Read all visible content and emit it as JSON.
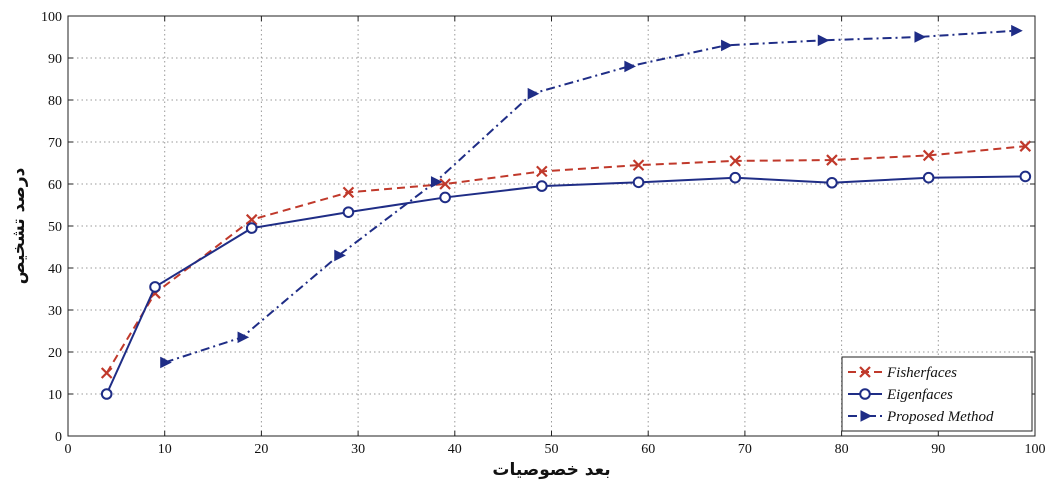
{
  "chart_data": {
    "type": "line",
    "xlabel": "بعد خصوصیات",
    "ylabel": "درصد تشخیص",
    "xlim": [
      0,
      100
    ],
    "ylim": [
      0,
      100
    ],
    "xticks": [
      0,
      10,
      20,
      30,
      40,
      50,
      60,
      70,
      80,
      90,
      100
    ],
    "yticks": [
      0,
      10,
      20,
      30,
      40,
      50,
      60,
      70,
      80,
      90,
      100
    ],
    "grid": true,
    "legend_position": "bottom-right",
    "series": [
      {
        "name": "Fisherfaces",
        "color": "#c0392b",
        "line_style": "dashed",
        "marker": "x",
        "x": [
          4,
          9,
          19,
          29,
          39,
          49,
          59,
          69,
          79,
          89,
          99
        ],
        "y": [
          15,
          34,
          51.5,
          58,
          60,
          63,
          64.5,
          65.5,
          65.7,
          66.8,
          69
        ]
      },
      {
        "name": "Eigenfaces",
        "color": "#1f2d86",
        "line_style": "solid",
        "marker": "o",
        "x": [
          4,
          9,
          19,
          29,
          39,
          49,
          59,
          69,
          79,
          89,
          99
        ],
        "y": [
          10,
          35.5,
          49.5,
          53.3,
          56.8,
          59.5,
          60.4,
          61.5,
          60.3,
          61.5,
          61.8
        ]
      },
      {
        "name": "Proposed Method",
        "color": "#1f2d86",
        "line_style": "dashdot",
        "marker": "triangle-right",
        "x": [
          10,
          18,
          28,
          38,
          48,
          58,
          68,
          78,
          88,
          98
        ],
        "y": [
          17.5,
          23.5,
          43,
          60.5,
          81.5,
          88,
          93,
          94.2,
          95,
          96.5
        ]
      }
    ]
  }
}
